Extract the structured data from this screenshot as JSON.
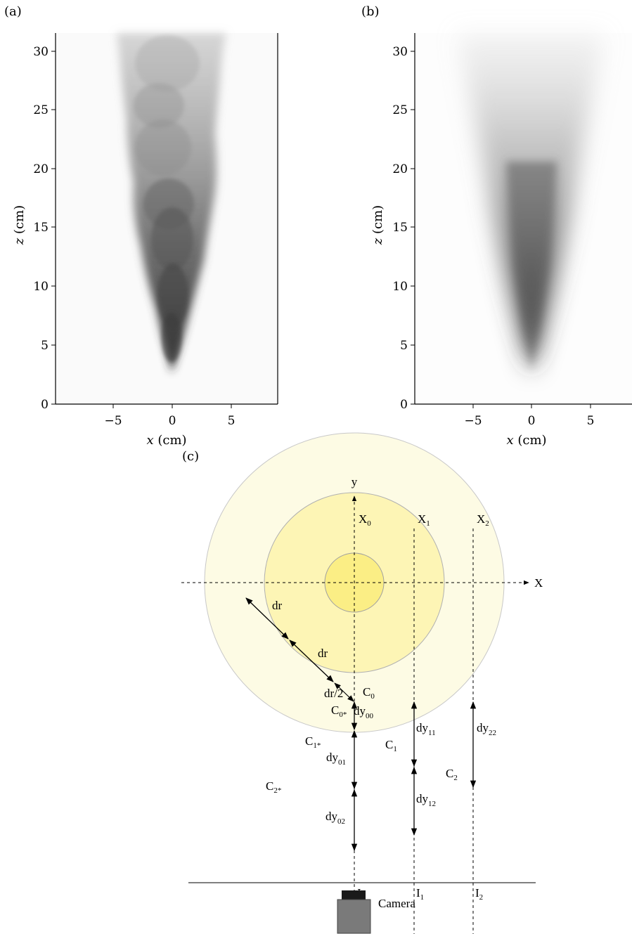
{
  "panels": {
    "a": {
      "label": "(a)",
      "xlabel_var": "x",
      "xlabel_unit": "(cm)",
      "ylabel_var": "z",
      "ylabel_unit": "(cm)",
      "xticks": [
        "−5",
        "0",
        "5"
      ],
      "yticks": [
        "0",
        "5",
        "10",
        "15",
        "20",
        "25",
        "30"
      ]
    },
    "b": {
      "label": "(b)",
      "xlabel_var": "x",
      "xlabel_unit": "(cm)",
      "ylabel_var": "z",
      "ylabel_unit": "(cm)",
      "xticks": [
        "−5",
        "0",
        "5"
      ],
      "yticks": [
        "0",
        "5",
        "10",
        "15",
        "20",
        "25",
        "30"
      ]
    },
    "c": {
      "label": "(c)",
      "axis_y": "y",
      "axis_x": "X",
      "X0": "X",
      "X0_sub": "0",
      "X1": "X",
      "X1_sub": "1",
      "X2": "X",
      "X2_sub": "2",
      "I0": "I",
      "I0_sub": "0",
      "I1": "I",
      "I1_sub": "1",
      "I2": "I",
      "I2_sub": "2",
      "dr1": "dr",
      "dr2": "dr",
      "dr_half": "dr/2",
      "C0": "C",
      "C0_sub": "0",
      "C0star": "C",
      "C0star_sub": "0*",
      "C1": "C",
      "C1_sub": "1",
      "C1star": "C",
      "C1star_sub": "1*",
      "C2": "C",
      "C2_sub": "2",
      "C2star": "C",
      "C2star_sub": "2*",
      "dy00": "dy",
      "dy00_sub": "00",
      "dy01": "dy",
      "dy01_sub": "01",
      "dy02": "dy",
      "dy02_sub": "02",
      "dy11": "dy",
      "dy11_sub": "11",
      "dy12": "dy",
      "dy12_sub": "12",
      "dy22": "dy",
      "dy22_sub": "22",
      "camera": "Camera"
    }
  },
  "colors": {
    "ring_outer": "#fdfbe4",
    "ring_middle": "#fdf5b5",
    "ring_inner": "#fbee85",
    "camera_body": "#7a7a7a",
    "camera_top": "#1a1a1a"
  }
}
